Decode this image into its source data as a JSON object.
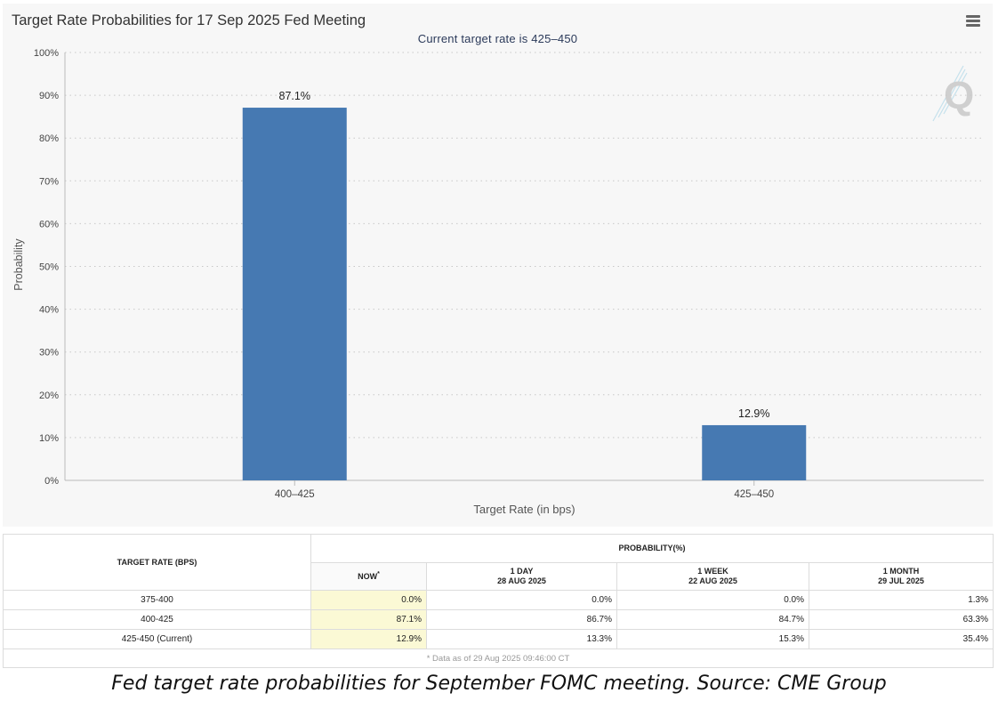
{
  "chart_data": {
    "type": "bar",
    "title": "Target Rate Probabilities for 17 Sep 2025 Fed Meeting",
    "subtitle": "Current target rate is 425–450",
    "xlabel": "Target Rate (in bps)",
    "ylabel": "Probability",
    "categories": [
      "400–425",
      "425–450"
    ],
    "values": [
      87.1,
      12.9
    ],
    "data_labels": [
      "87.1%",
      "12.9%"
    ],
    "ylim": [
      0,
      100
    ],
    "yticks": [
      0,
      10,
      20,
      30,
      40,
      50,
      60,
      70,
      80,
      90,
      100
    ],
    "ytick_labels": [
      "0%",
      "10%",
      "20%",
      "30%",
      "40%",
      "50%",
      "60%",
      "70%",
      "80%",
      "90%",
      "100%"
    ],
    "grid": true,
    "legend": "none",
    "bar_color": "#4679b2"
  },
  "menu_icon": "hamburger-menu-icon",
  "watermark_icon": "q-logo-icon",
  "table": {
    "target_rate_header": "TARGET RATE (BPS)",
    "probability_header": "PROBABILITY(%)",
    "columns": [
      {
        "line1": "NOW",
        "line2": ""
      },
      {
        "line1": "1 DAY",
        "line2": "28 AUG 2025"
      },
      {
        "line1": "1 WEEK",
        "line2": "22 AUG 2025"
      },
      {
        "line1": "1 MONTH",
        "line2": "29 JUL 2025"
      }
    ],
    "now_marker": "*",
    "rows": [
      {
        "rate": "375-400",
        "values": [
          "0.0%",
          "0.0%",
          "0.0%",
          "1.3%"
        ]
      },
      {
        "rate": "400-425",
        "values": [
          "87.1%",
          "86.7%",
          "84.7%",
          "63.3%"
        ]
      },
      {
        "rate": "425-450 (Current)",
        "values": [
          "12.9%",
          "13.3%",
          "15.3%",
          "35.4%"
        ]
      }
    ],
    "footnote": "* Data as of 29 Aug 2025 09:46:00 CT",
    "now_highlight_color": "#fbf9d5"
  },
  "caption": "Fed target rate probabilities for September FOMC meeting. Source: CME Group"
}
